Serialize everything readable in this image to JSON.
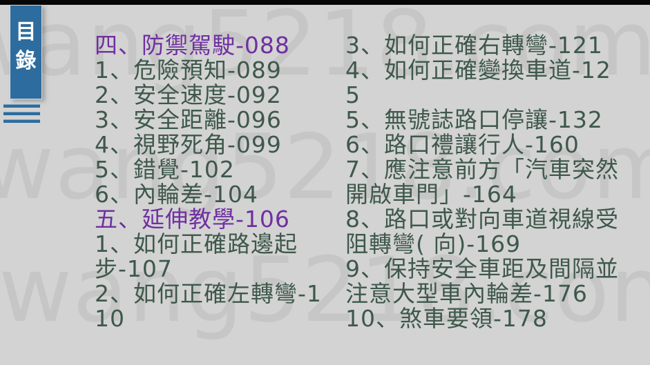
{
  "slide": {
    "background_color": "#d3d3d3",
    "letterbox_color": "#060606",
    "watermark_text": "wang5218.com",
    "watermark_color": "#c6c6c6"
  },
  "sidebar": {
    "title": "目錄",
    "title_chars": [
      "目",
      "錄"
    ],
    "accent_color": "#2d6c9e",
    "decoration_line_count": 3
  },
  "toc": {
    "section_color": "#7030a0",
    "item_color": "#3e584b",
    "left_column": [
      {
        "style": "section",
        "text": "四、防禦駕駛-088"
      },
      {
        "style": "item",
        "text": "1、危險預知-089"
      },
      {
        "style": "item",
        "text": "2、安全速度-092"
      },
      {
        "style": "item",
        "text": "3、安全距離-096"
      },
      {
        "style": "item",
        "text": "4、視野死角-099"
      },
      {
        "style": "item",
        "text": "5、錯覺-102"
      },
      {
        "style": "item",
        "text": "6、內輪差-104"
      },
      {
        "style": "section",
        "text": "五、延伸教學-106"
      },
      {
        "style": "item",
        "text": "1、如何正確路邊起步-107"
      },
      {
        "style": "item",
        "text": "2、如何正確左轉彎-110"
      }
    ],
    "right_column": [
      {
        "style": "item",
        "text": "3、如何正確右轉彎-121"
      },
      {
        "style": "item",
        "text": "4、如何正確變換車道-125"
      },
      {
        "style": "item",
        "text": "5、無號誌路口停讓-132"
      },
      {
        "style": "item",
        "text": "6、路口禮讓行人-160"
      },
      {
        "style": "item",
        "text": "7、應注意前方「汽車突然開啟車門」-164"
      },
      {
        "style": "item",
        "text": "8、路口或對向車道視線受阻轉彎( 向)-169"
      },
      {
        "style": "item",
        "text": "9、保持安全車距及間隔並注意大型車內輪差-176"
      },
      {
        "style": "item",
        "text": "10、煞車要領-178"
      }
    ]
  }
}
